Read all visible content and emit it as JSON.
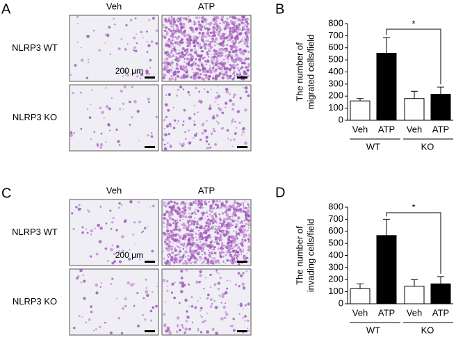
{
  "panels": [
    {
      "label": "A",
      "col_headers": [
        "Veh",
        "ATP"
      ],
      "row_labels": [
        "NLRP3 WT",
        "NLRP3 KO"
      ],
      "scale_bar": "200 μm"
    },
    {
      "label": "C",
      "col_headers": [
        "Veh",
        "ATP"
      ],
      "row_labels": [
        "NLRP3 WT",
        "NLRP3 KO"
      ],
      "scale_bar": "200 μm"
    }
  ],
  "chart_data": [
    {
      "type": "bar",
      "panel_label": "B",
      "ylabel": [
        "The number of",
        "migrated cells/field"
      ],
      "categories": [
        "Veh",
        "ATP",
        "Veh",
        "ATP"
      ],
      "groups": [
        "WT",
        "KO"
      ],
      "values": [
        160,
        555,
        180,
        215
      ],
      "errors": [
        20,
        130,
        60,
        60
      ],
      "colors": [
        "#ffffff",
        "#000000",
        "#ffffff",
        "#000000"
      ],
      "ylim": [
        0,
        800
      ],
      "yticks": [
        0,
        100,
        200,
        300,
        400,
        500,
        600,
        700,
        800
      ],
      "significance": "*"
    },
    {
      "type": "bar",
      "panel_label": "D",
      "ylabel": [
        "The number of",
        "invading cells/field"
      ],
      "categories": [
        "Veh",
        "ATP",
        "Veh",
        "ATP"
      ],
      "groups": [
        "WT",
        "KO"
      ],
      "values": [
        125,
        565,
        145,
        165
      ],
      "errors": [
        40,
        135,
        55,
        60
      ],
      "colors": [
        "#ffffff",
        "#000000",
        "#ffffff",
        "#000000"
      ],
      "ylim": [
        0,
        800
      ],
      "yticks": [
        0,
        100,
        200,
        300,
        400,
        500,
        600,
        700,
        800
      ],
      "significance": "*"
    }
  ]
}
